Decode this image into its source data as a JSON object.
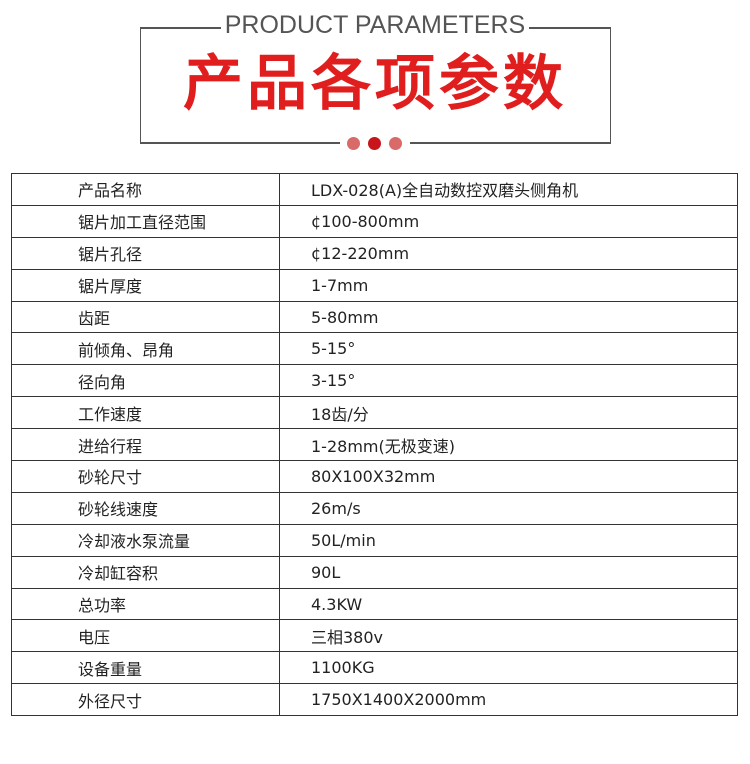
{
  "header": {
    "subtitle_en": "PRODUCT PARAMETERS",
    "title_cn": "产品各项参数"
  },
  "colors": {
    "accent": "#e01e1e",
    "dot_light": "#d96a6a",
    "dot_dark": "#c8141a"
  },
  "specs": [
    {
      "label": "产品名称",
      "value": "LDX-028(A)全自动数控双磨头侧角机"
    },
    {
      "label": "锯片加工直径范围",
      "value": "¢100-800mm"
    },
    {
      "label": "锯片孔径",
      "value": "¢12-220mm"
    },
    {
      "label": "锯片厚度",
      "value": "1-7mm"
    },
    {
      "label": "齿距",
      "value": "5-80mm"
    },
    {
      "label": "前倾角、昂角",
      "value": "5-15°"
    },
    {
      "label": "径向角",
      "value": "3-15°"
    },
    {
      "label": "工作速度",
      "value": "18齿/分"
    },
    {
      "label": "进给行程",
      "value": "1-28mm(无极变速)"
    },
    {
      "label": "砂轮尺寸",
      "value": "80X100X32mm"
    },
    {
      "label": "砂轮线速度",
      "value": "26m/s"
    },
    {
      "label": "冷却液水泵流量",
      "value": "50L/min"
    },
    {
      "label": "冷却缸容积",
      "value": "90L"
    },
    {
      "label": "总功率",
      "value": "4.3KW"
    },
    {
      "label": "电压",
      "value": "三相380v"
    },
    {
      "label": "设备重量",
      "value": "1100KG"
    },
    {
      "label": "外径尺寸",
      "value": "1750X1400X2000mm"
    }
  ]
}
